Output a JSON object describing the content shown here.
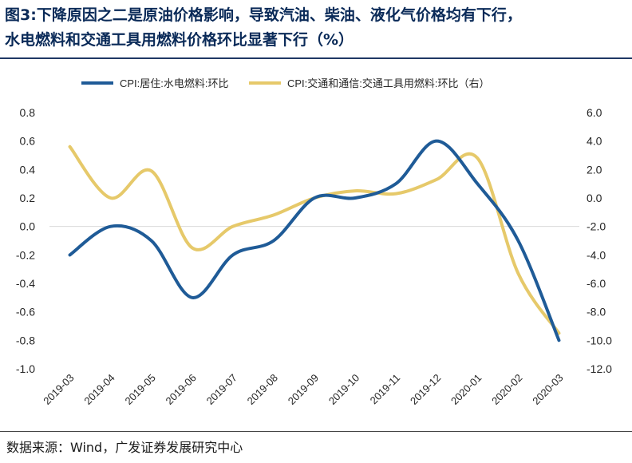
{
  "header": {
    "title_prefix": "图3:",
    "title_line1": "下降原因之二是原油价格影响，导致汽油、柴油、液化气价格均有下行，",
    "title_line2": "水电燃料和交通工具用燃料价格环比显著下行（%）"
  },
  "footer": {
    "source": "数据来源：Wind，广发证券发展研究中心"
  },
  "chart_data": {
    "type": "line",
    "title": "",
    "xlabel": "",
    "ylabel": "",
    "categories": [
      "2019-03",
      "2019-04",
      "2019-05",
      "2019-06",
      "2019-07",
      "2019-08",
      "2019-09",
      "2019-10",
      "2019-11",
      "2019-12",
      "2020-01",
      "2020-02",
      "2020-03"
    ],
    "series": [
      {
        "name": "CPI:居住:水电燃料:环比",
        "axis": "left",
        "color": "#1f5b97",
        "values": [
          -0.2,
          0.0,
          -0.1,
          -0.5,
          -0.2,
          -0.1,
          0.2,
          0.2,
          0.3,
          0.6,
          0.3,
          -0.1,
          -0.8
        ]
      },
      {
        "name": "CPI:交通和通信:交通工具用燃料:环比",
        "axis": "right",
        "color": "#e6c96a",
        "values": [
          3.6,
          0.0,
          1.9,
          -3.5,
          -2.0,
          -1.2,
          0.0,
          0.5,
          0.3,
          1.3,
          2.8,
          -5.3,
          -9.5
        ]
      }
    ],
    "y_left": {
      "ylim": [
        -1.0,
        0.8
      ],
      "ticks": [
        "0.8",
        "0.6",
        "0.4",
        "0.2",
        "0.0",
        "-0.2",
        "-0.4",
        "-0.6",
        "-0.8",
        "-1.0"
      ]
    },
    "y_right": {
      "ylim": [
        -12.0,
        6.0
      ],
      "ticks": [
        "6.0",
        "4.0",
        "2.0",
        "0.0",
        "-2.0",
        "-4.0",
        "-6.0",
        "-8.0",
        "-10.0",
        "-12.0"
      ]
    },
    "legend_position": "top",
    "grid": false,
    "zero_line": true
  }
}
